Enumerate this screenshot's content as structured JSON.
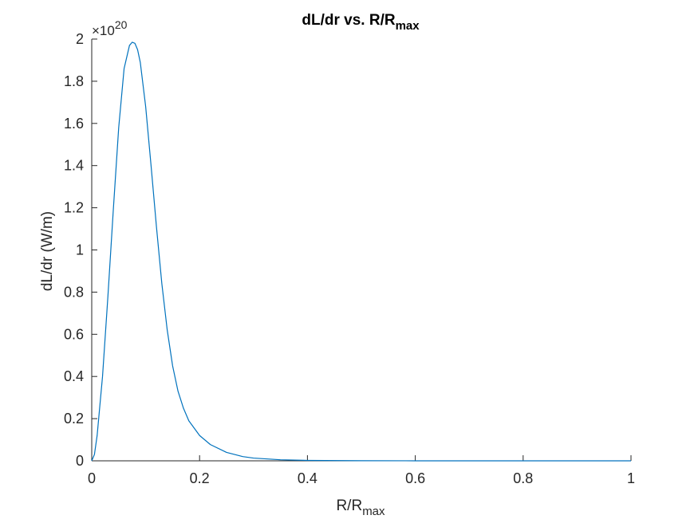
{
  "chart_data": {
    "type": "line",
    "title": {
      "main": "dL/dr vs. R/R",
      "subscript": "max"
    },
    "xlabel": {
      "main": "R/R",
      "subscript": "max"
    },
    "ylabel": "dL/dr (W/m)",
    "y_exponent": {
      "prefix": "×10",
      "power": "20"
    },
    "xlim": [
      0,
      1
    ],
    "ylim": [
      0,
      2
    ],
    "x_ticks": [
      0,
      0.2,
      0.4,
      0.6,
      0.8,
      1
    ],
    "x_tick_labels": [
      "0",
      "0.2",
      "0.4",
      "0.6",
      "0.8",
      "1"
    ],
    "y_ticks": [
      0,
      0.2,
      0.4,
      0.6,
      0.8,
      1,
      1.2,
      1.4,
      1.6,
      1.8,
      2
    ],
    "y_tick_labels": [
      "0",
      "0.2",
      "0.4",
      "0.6",
      "0.8",
      "1",
      "1.2",
      "1.4",
      "1.6",
      "1.8",
      "2"
    ],
    "grid": false,
    "box": false,
    "series": [
      {
        "color": "#0072BD",
        "x": [
          0,
          0.005,
          0.01,
          0.02,
          0.03,
          0.04,
          0.05,
          0.06,
          0.07,
          0.075,
          0.08,
          0.085,
          0.09,
          0.1,
          0.11,
          0.12,
          0.13,
          0.14,
          0.15,
          0.16,
          0.17,
          0.18,
          0.2,
          0.22,
          0.25,
          0.28,
          0.3,
          0.35,
          0.4,
          0.5,
          0.6,
          0.7,
          0.8,
          0.9,
          1.0
        ],
        "y": [
          0,
          0.03,
          0.12,
          0.4,
          0.78,
          1.19,
          1.58,
          1.86,
          1.97,
          1.985,
          1.98,
          1.95,
          1.89,
          1.68,
          1.4,
          1.11,
          0.84,
          0.62,
          0.45,
          0.33,
          0.25,
          0.19,
          0.12,
          0.077,
          0.04,
          0.02,
          0.013,
          0.005,
          0.002,
          0.0005,
          0.0001,
          3e-05,
          0,
          0,
          0
        ]
      }
    ]
  }
}
